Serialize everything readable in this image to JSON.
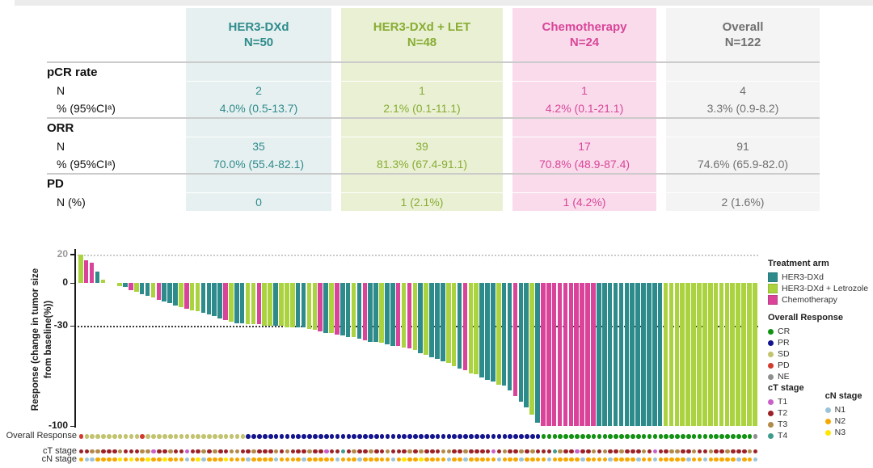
{
  "page": {
    "background": "#ffffff",
    "top_strip_color": "#ECECEC"
  },
  "table": {
    "columns": [
      {
        "label": "HER3-DXd",
        "n": "N=50",
        "text_color": "#2E8B8C",
        "bg_color": "#E7F0F0"
      },
      {
        "label": "HER3-DXd + LET",
        "n": "N=48",
        "text_color": "#88AD33",
        "bg_color": "#EAF0D4"
      },
      {
        "label": "Chemotherapy",
        "n": "N=24",
        "text_color": "#D94699",
        "bg_color": "#F9DBEB"
      },
      {
        "label": "Overall",
        "n": "N=122",
        "text_color": "#707070",
        "bg_color": "#F4F4F4"
      }
    ],
    "sections": [
      {
        "label": "pCR rate",
        "rows": [
          {
            "label": "N",
            "values": [
              "2",
              "1",
              "1",
              "4"
            ]
          },
          {
            "label": "% (95%CIᵃ)",
            "values": [
              "4.0% (0.5-13.7)",
              "2.1% (0.1-11.1)",
              "4.2% (0.1-21.1)",
              "3.3% (0.9-8.2)"
            ]
          }
        ]
      },
      {
        "label": "ORR",
        "rows": [
          {
            "label": "N",
            "values": [
              "35",
              "39",
              "17",
              "91"
            ]
          },
          {
            "label": "% (95%CIᵃ)",
            "values": [
              "70.0% (55.4-82.1)",
              "81.3% (67.4-91.1)",
              "70.8% (48.9-87.4)",
              "74.6% (65.9-82.0)"
            ]
          }
        ]
      },
      {
        "label": "PD",
        "rows": [
          {
            "label": "N (%)",
            "values": [
              "0",
              "1 (2.1%)",
              "1 (4.2%)",
              "2 (1.6%)"
            ]
          }
        ]
      }
    ]
  },
  "chart_data": {
    "type": "bar",
    "subtype": "waterfall",
    "ylabel_line1": "Response (change in tumor size",
    "ylabel_line2": "from baseline(%))",
    "yticks": [
      20,
      0,
      -30,
      -100
    ],
    "ylim": [
      -100,
      25
    ],
    "gridlines": [
      {
        "y": 20,
        "color": "#C9C9C9"
      },
      {
        "y": -30,
        "color": "#3A3A3A"
      }
    ],
    "arm_keys": {
      "DXD": "HER3-DXd",
      "LET": "HER3-DXd + Letrozole",
      "CHE": "Chemotherapy"
    },
    "palette": {
      "HER3-DXd": "#2E8B8C",
      "HER3-DXd + Letrozole": "#ABD33F",
      "Chemotherapy": "#D9449A",
      "CR": "#129212",
      "PR": "#14148F",
      "SD": "#C2C36F",
      "PD": "#D23B2D",
      "NE": "#8F8F8F",
      "T1": "#C95FC9",
      "T2": "#9C2127",
      "T3": "#B28A4A",
      "T4": "#3F9C8C",
      "N1": "#9CC4D8",
      "N2": "#F6A800",
      "N3": "#FFE600"
    },
    "bars": [
      [
        "LET",
        20
      ],
      [
        "CHE",
        16
      ],
      [
        "CHE",
        14
      ],
      [
        "DXD",
        8
      ],
      [
        "LET",
        2
      ],
      [
        "DXD",
        0
      ],
      [
        "LET",
        0
      ],
      [
        "LET",
        -2
      ],
      [
        "DXD",
        -3
      ],
      [
        "CHE",
        -5
      ],
      [
        "LET",
        -6
      ],
      [
        "DXD",
        -8
      ],
      [
        "DXD",
        -9
      ],
      [
        "LET",
        -10
      ],
      [
        "CHE",
        -12
      ],
      [
        "DXD",
        -13
      ],
      [
        "DXD",
        -14
      ],
      [
        "DXD",
        -16
      ],
      [
        "LET",
        -17
      ],
      [
        "CHE",
        -18
      ],
      [
        "LET",
        -19
      ],
      [
        "LET",
        -20
      ],
      [
        "DXD",
        -21
      ],
      [
        "DXD",
        -22
      ],
      [
        "DXD",
        -23
      ],
      [
        "DXD",
        -25
      ],
      [
        "CHE",
        -26
      ],
      [
        "LET",
        -27
      ],
      [
        "DXD",
        -28
      ],
      [
        "DXD",
        -28
      ],
      [
        "LET",
        -29
      ],
      [
        "LET",
        -29
      ],
      [
        "CHE",
        -29
      ],
      [
        "LET",
        -30
      ],
      [
        "LET",
        -30
      ],
      [
        "DXD",
        -30
      ],
      [
        "LET",
        -30
      ],
      [
        "LET",
        -31
      ],
      [
        "LET",
        -31
      ],
      [
        "DXD",
        -31
      ],
      [
        "DXD",
        -31
      ],
      [
        "LET",
        -32
      ],
      [
        "LET",
        -33
      ],
      [
        "CHE",
        -34
      ],
      [
        "DXD",
        -35
      ],
      [
        "LET",
        -35
      ],
      [
        "CHE",
        -36
      ],
      [
        "DXD",
        -37
      ],
      [
        "DXD",
        -38
      ],
      [
        "LET",
        -38
      ],
      [
        "DXD",
        -39
      ],
      [
        "CHE",
        -40
      ],
      [
        "DXD",
        -41
      ],
      [
        "DXD",
        -41
      ],
      [
        "LET",
        -42
      ],
      [
        "DXD",
        -43
      ],
      [
        "DXD",
        -44
      ],
      [
        "CHE",
        -44
      ],
      [
        "LET",
        -45
      ],
      [
        "CHE",
        -46
      ],
      [
        "LET",
        -47
      ],
      [
        "DXD",
        -49
      ],
      [
        "LET",
        -50
      ],
      [
        "DXD",
        -52
      ],
      [
        "DXD",
        -53
      ],
      [
        "DXD",
        -55
      ],
      [
        "LET",
        -56
      ],
      [
        "LET",
        -58
      ],
      [
        "DXD",
        -60
      ],
      [
        "CHE",
        -61
      ],
      [
        "LET",
        -63
      ],
      [
        "LET",
        -64
      ],
      [
        "DXD",
        -66
      ],
      [
        "DXD",
        -68
      ],
      [
        "DXD",
        -69
      ],
      [
        "LET",
        -71
      ],
      [
        "DXD",
        -72
      ],
      [
        "DXD",
        -75
      ],
      [
        "CHE",
        -79
      ],
      [
        "DXD",
        -83
      ],
      [
        "DXD",
        -87
      ],
      [
        "LET",
        -92
      ],
      [
        "DXD",
        -98
      ],
      [
        "CHE",
        -100
      ],
      [
        "CHE",
        -100
      ],
      [
        "CHE",
        -100
      ],
      [
        "CHE",
        -100
      ],
      [
        "CHE",
        -100
      ],
      [
        "CHE",
        -100
      ],
      [
        "CHE",
        -100
      ],
      [
        "CHE",
        -100
      ],
      [
        "CHE",
        -100
      ],
      [
        "CHE",
        -100
      ],
      [
        "DXD",
        -100
      ],
      [
        "DXD",
        -100
      ],
      [
        "DXD",
        -100
      ],
      [
        "DXD",
        -100
      ],
      [
        "DXD",
        -100
      ],
      [
        "DXD",
        -100
      ],
      [
        "DXD",
        -100
      ],
      [
        "DXD",
        -100
      ],
      [
        "DXD",
        -100
      ],
      [
        "DXD",
        -100
      ],
      [
        "DXD",
        -100
      ],
      [
        "DXD",
        -100
      ],
      [
        "LET",
        -100
      ],
      [
        "LET",
        -100
      ],
      [
        "LET",
        -100
      ],
      [
        "LET",
        -100
      ],
      [
        "LET",
        -100
      ],
      [
        "LET",
        -100
      ],
      [
        "LET",
        -100
      ],
      [
        "LET",
        -100
      ],
      [
        "LET",
        -100
      ],
      [
        "LET",
        -100
      ],
      [
        "LET",
        -100
      ],
      [
        "LET",
        -100
      ],
      [
        "LET",
        -100
      ],
      [
        "LET",
        -100
      ],
      [
        "LET",
        -100
      ],
      [
        "LET",
        -100
      ],
      [
        "LET",
        -100
      ]
    ],
    "tracks": [
      {
        "label": "Overall Response",
        "values": [
          "PD",
          "SD",
          "SD",
          "SD",
          "SD",
          "SD",
          "SD",
          "SD",
          "SD",
          "SD",
          "SD",
          "PD",
          "SD",
          "SD",
          "SD",
          "SD",
          "SD",
          "SD",
          "SD",
          "SD",
          "SD",
          "SD",
          "SD",
          "SD",
          "SD",
          "SD",
          "SD",
          "SD",
          "SD",
          "SD",
          "PR",
          "PR",
          "PR",
          "PR",
          "PR",
          "PR",
          "PR",
          "PR",
          "PR",
          "PR",
          "PR",
          "PR",
          "PR",
          "PR",
          "PR",
          "PR",
          "PR",
          "PR",
          "PR",
          "PR",
          "PR",
          "PR",
          "PR",
          "PR",
          "PR",
          "PR",
          "PR",
          "PR",
          "PR",
          "PR",
          "PR",
          "PR",
          "PR",
          "PR",
          "PR",
          "PR",
          "PR",
          "PR",
          "PR",
          "PR",
          "PR",
          "PR",
          "PR",
          "PR",
          "PR",
          "PR",
          "PR",
          "PR",
          "PR",
          "PR",
          "PR",
          "PR",
          "PR",
          "CR",
          "CR",
          "CR",
          "CR",
          "CR",
          "CR",
          "CR",
          "CR",
          "CR",
          "CR",
          "CR",
          "CR",
          "CR",
          "CR",
          "CR",
          "CR",
          "CR",
          "CR",
          "CR",
          "CR",
          "CR",
          "CR",
          "CR",
          "CR",
          "CR",
          "CR",
          "CR",
          "CR",
          "CR",
          "CR",
          "CR",
          "CR",
          "CR",
          "CR",
          "CR",
          "CR",
          "CR",
          "CR",
          "NE"
        ]
      },
      {
        "label": "cT stage",
        "values": [
          "T2",
          "T2",
          "T3",
          "T3",
          "T2",
          "T2",
          "T2",
          "T3",
          "T2",
          "T2",
          "T2",
          "T3",
          "T3",
          "T1",
          "T2",
          "T2",
          "T3",
          "T2",
          "T2",
          "T1",
          "T2",
          "T2",
          "T3",
          "T2",
          "T3",
          "T2",
          "T2",
          "T3",
          "T3",
          "T2",
          "T2",
          "T3",
          "T2",
          "T2",
          "T2",
          "T3",
          "T2",
          "T3",
          "T2",
          "T2",
          "T2",
          "T3",
          "T2",
          "T2",
          "T1",
          "T2",
          "T2",
          "T4",
          "T2",
          "T3",
          "T2",
          "T2",
          "T3",
          "T2",
          "T2",
          "T3",
          "T2",
          "T2",
          "T2",
          "T3",
          "T2",
          "T3",
          "T2",
          "T2",
          "T2",
          "T3",
          "T3",
          "T2",
          "T2",
          "T3",
          "T2",
          "T2",
          "T2",
          "T2",
          "T1",
          "T2",
          "T3",
          "T2",
          "T2",
          "T3",
          "T2",
          "T3",
          "T2",
          "T2",
          "T2",
          "T4",
          "T3",
          "T2",
          "T2",
          "T1",
          "T2",
          "T2",
          "T3",
          "T2",
          "T3",
          "T2",
          "T2",
          "T3",
          "T2",
          "T2",
          "T2",
          "T3",
          "T2",
          "T1",
          "T2",
          "T2",
          "T3",
          "T3",
          "T2",
          "T2",
          "T3",
          "T2",
          "T2",
          "T3",
          "T2",
          "T2",
          "T3",
          "T2",
          "T2",
          "T2",
          "T3",
          "T2"
        ]
      },
      {
        "label": "cN stage",
        "values": [
          "N2",
          "N1",
          "N1",
          "N2",
          "N2",
          "N2",
          "N2",
          "N3",
          "N2",
          "N3",
          "N2",
          "N2",
          "N3",
          "N2",
          "N2",
          "N3",
          "N2",
          "N2",
          "N2",
          "N1",
          "N2",
          "N3",
          "N1",
          "N2",
          "N2",
          "N2",
          "N3",
          "N2",
          "N2",
          "N2",
          "N1",
          "N2",
          "N2",
          "N2",
          "N2",
          "N1",
          "N2",
          "N2",
          "N2",
          "N2",
          "N1",
          "N2",
          "N2",
          "N2",
          "N2",
          "N2",
          "N1",
          "N2",
          "N2",
          "N2",
          "N1",
          "N2",
          "N2",
          "N2",
          "N2",
          "N2",
          "N1",
          "N2",
          "N3",
          "N2",
          "N2",
          "N3",
          "N2",
          "N2",
          "N2",
          "N2",
          "N1",
          "N2",
          "N2",
          "N1",
          "N2",
          "N2",
          "N2",
          "N2",
          "N2",
          "N1",
          "N2",
          "N2",
          "N2",
          "N1",
          "N2",
          "N2",
          "N2",
          "N2",
          "N1",
          "N2",
          "N2",
          "N2",
          "N2",
          "N2",
          "N1",
          "N2",
          "N2",
          "N2",
          "N2",
          "N1",
          "N2",
          "N2",
          "N2",
          "N2",
          "N1",
          "N2",
          "N2",
          "N1",
          "N2",
          "N2",
          "N2",
          "N2",
          "N2",
          "N1",
          "N2",
          "N2",
          "N1",
          "N2",
          "N2",
          "N2",
          "N2",
          "N2",
          "N1",
          "N2",
          "N2",
          "N1"
        ]
      }
    ],
    "legend": {
      "sections": [
        {
          "title": "Treatment arm",
          "shape": "square",
          "items": [
            "HER3-DXd",
            "HER3-DXd + Letrozole",
            "Chemotherapy"
          ]
        },
        {
          "title": "Overall Response",
          "shape": "dot",
          "items": [
            "CR",
            "PR",
            "SD",
            "PD",
            "NE"
          ]
        },
        {
          "title": "cT stage",
          "shape": "dot",
          "items": [
            "T1",
            "T2",
            "T3",
            "T4"
          ]
        },
        {
          "title": "cN stage",
          "shape": "dot",
          "items": [
            "N1",
            "N2",
            "N3"
          ]
        }
      ]
    }
  }
}
